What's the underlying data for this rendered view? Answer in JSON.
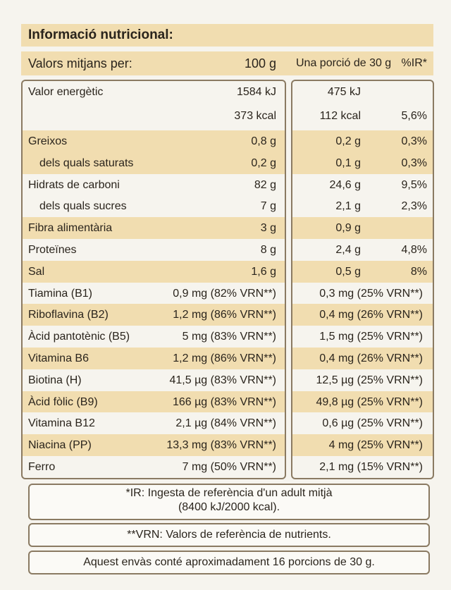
{
  "title": "Informació nutricional:",
  "header": {
    "label": "Valors mitjans per:",
    "per_100g": "100 g",
    "portion": "Una porció de 30 g",
    "ir": "%IR*"
  },
  "rows": [
    {
      "label": "Valor energètic",
      "per_100g": [
        "1584 kJ",
        "373 kcal"
      ],
      "portion": [
        "475 kJ",
        "112 kcal"
      ],
      "ir": "5,6%"
    },
    {
      "label": "Greixos",
      "per_100g": "0,8 g",
      "portion": "0,2 g",
      "ir": "0,3%"
    },
    {
      "label": "dels quals saturats",
      "per_100g": "0,2 g",
      "portion": "0,1 g",
      "ir": "0,3%"
    },
    {
      "label": "Hidrats de carboni",
      "per_100g": "82 g",
      "portion": "24,6 g",
      "ir": "9,5%"
    },
    {
      "label": "dels quals sucres",
      "per_100g": "7 g",
      "portion": "2,1 g",
      "ir": "2,3%"
    },
    {
      "label": "Fibra alimentària",
      "per_100g": "3 g",
      "portion": "0,9 g"
    },
    {
      "label": "Proteïnes",
      "per_100g": "8 g",
      "portion": "2,4 g",
      "ir": "4,8%"
    },
    {
      "label": "Sal",
      "per_100g": "1,6 g",
      "portion": "0,5 g",
      "ir": "8%"
    },
    {
      "label": "Tiamina (B1)",
      "per_100g": "0,9 mg (82% VRN**)",
      "portion": "0,3 mg (25% VRN**)"
    },
    {
      "label": "Riboflavina (B2)",
      "per_100g": "1,2 mg (86% VRN**)",
      "portion": "0,4 mg (26% VRN**)"
    },
    {
      "label": "Àcid pantotènic (B5)",
      "per_100g": "5 mg (83% VRN**)",
      "portion": "1,5 mg (25% VRN**)"
    },
    {
      "label": "Vitamina B6",
      "per_100g": "1,2 mg (86% VRN**)",
      "portion": "0,4 mg (26% VRN**)"
    },
    {
      "label": "Biotina (H)",
      "per_100g": "41,5 µg (83% VRN**)",
      "portion": "12,5 µg (25% VRN**)"
    },
    {
      "label": "Àcid fòlic (B9)",
      "per_100g": "166 µg (83% VRN**)",
      "portion": "49,8 µg (25% VRN**)"
    },
    {
      "label": "Vitamina B12",
      "per_100g": "2,1 µg (84% VRN**)",
      "portion": "0,6 µg (25% VRN**)"
    },
    {
      "label": "Niacina (PP)",
      "per_100g": "13,3 mg (83% VRN**)",
      "portion": "4 mg (25% VRN**)"
    },
    {
      "label": "Ferro",
      "per_100g": "7 mg (50% VRN**)",
      "portion": "2,1 mg (15% VRN**)"
    }
  ],
  "notes": [
    "*IR: Ingesta de referència d'un adult mitjà",
    "(8400 kJ/2000 kcal).",
    "**VRN: Valors de referència de nutrients.",
    "Aquest envàs conté aproximadament 16 porcions de 30 g."
  ]
}
